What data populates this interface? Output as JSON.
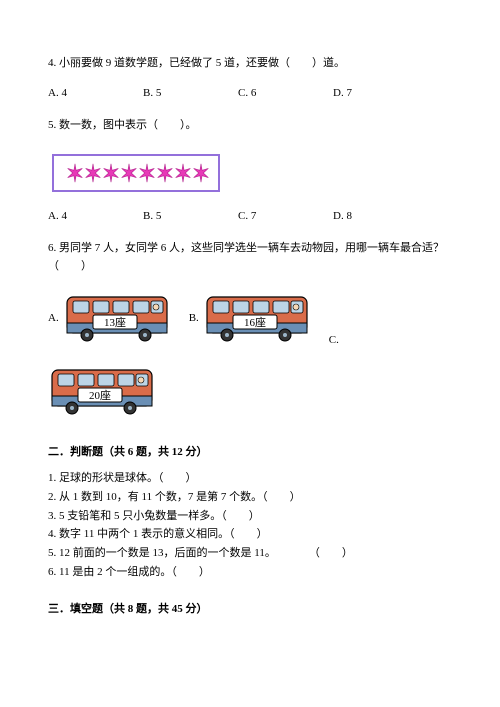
{
  "q4": {
    "text": "4. 小丽要做 9 道数学题，已经做了 5 道，还要做（　　）道。",
    "options": {
      "a": "A. 4",
      "b": "B. 5",
      "c": "C. 6",
      "d": "D. 7"
    }
  },
  "q5": {
    "text": "5. 数一数，图中表示（　　）。",
    "stars": {
      "count": 8,
      "fill_color": "#e83ab8",
      "stroke_color": "#b01e8a",
      "box_border_color": "#9370db"
    },
    "options": {
      "a": "A. 4",
      "b": "B. 5",
      "c": "C. 7",
      "d": "D. 8"
    }
  },
  "q6": {
    "text": "6. 男同学 7 人，女同学 6 人，这些同学选坐一辆车去动物园，用哪一辆车最合适？（　　）",
    "buses": {
      "a": {
        "label": "A.",
        "seats": "13座"
      },
      "b": {
        "label": "B.",
        "seats": "16座"
      },
      "c": {
        "label": "C.",
        "seats": "20座"
      }
    },
    "bus_style": {
      "body_color": "#d96c4a",
      "trim_color": "#6a8fb5",
      "label_bg": "#ffffff",
      "wheel_color": "#333333"
    }
  },
  "section2": {
    "header": "二．判断题（共 6 题，共 12 分）",
    "items": [
      "1. 足球的形状是球体。（　　）",
      "2. 从 1 数到 10，有 11 个数，7 是第 7 个数。（　　）",
      "3. 5 支铅笔和 5 只小兔数量一样多。（　　）",
      "4. 数字 11 中两个 1 表示的意义相同。（　　）",
      "5. 12 前面的一个数是 13，后面的一个数是 11。　　　　（　　）",
      "6. 11 是由 2 个一组成的。（　　）"
    ]
  },
  "section3": {
    "header": "三．填空题（共 8 题，共 45 分）"
  }
}
